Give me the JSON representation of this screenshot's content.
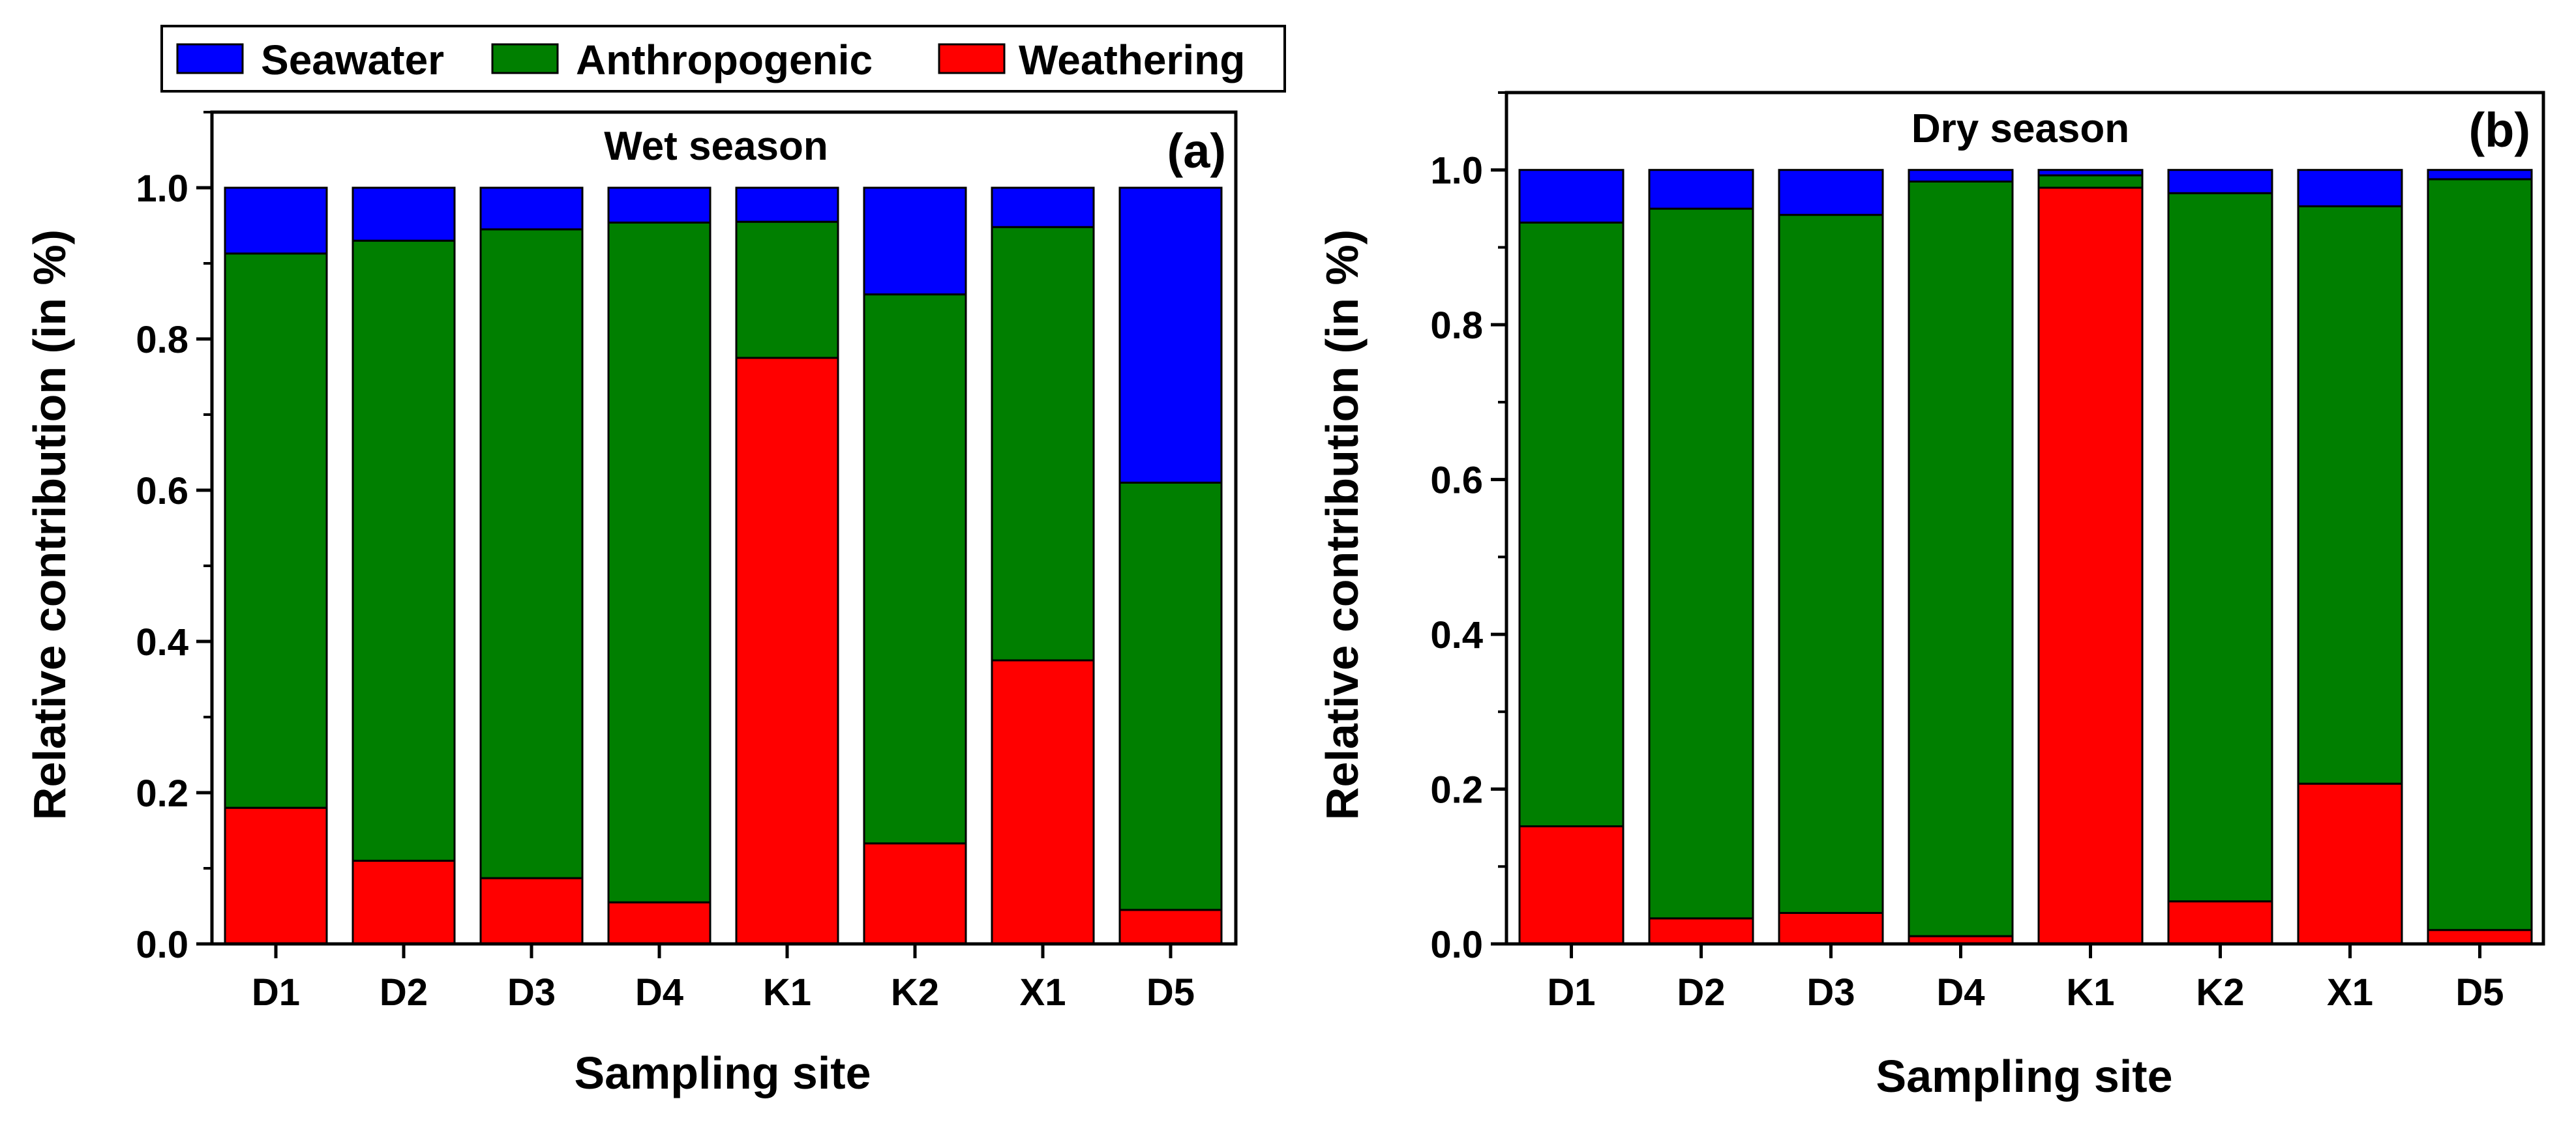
{
  "legend": {
    "items": [
      {
        "label": "Seawater",
        "color": "#0000FF"
      },
      {
        "label": "Anthropogenic",
        "color": "#007F00"
      },
      {
        "label": "Weathering",
        "color": "#FF0000"
      }
    ]
  },
  "chart_data": [
    {
      "type": "bar",
      "stacked": true,
      "title": "Wet season",
      "panel_label": "(a)",
      "xlabel": "Sampling site",
      "ylabel": "Relative contribution (in %)",
      "ylim": [
        0,
        1.1
      ],
      "yticks": [
        "0.0",
        "0.2",
        "0.4",
        "0.6",
        "0.8",
        "1.0"
      ],
      "categories": [
        "D1",
        "D2",
        "D3",
        "D4",
        "K1",
        "K2",
        "X1",
        "D5"
      ],
      "series": [
        {
          "name": "Weathering",
          "color": "#FF0000",
          "values": [
            0.18,
            0.11,
            0.087,
            0.055,
            0.775,
            0.133,
            0.375,
            0.045
          ]
        },
        {
          "name": "Anthropogenic",
          "color": "#007F00",
          "values": [
            0.733,
            0.82,
            0.858,
            0.899,
            0.18,
            0.726,
            0.573,
            0.565
          ]
        },
        {
          "name": "Seawater",
          "color": "#0000FF",
          "values": [
            0.087,
            0.07,
            0.055,
            0.046,
            0.045,
            0.141,
            0.052,
            0.39
          ]
        }
      ]
    },
    {
      "type": "bar",
      "stacked": true,
      "title": "Dry season",
      "panel_label": "(b)",
      "xlabel": "Sampling site",
      "ylabel": "Relative contribution (in %)",
      "ylim": [
        0,
        1.1
      ],
      "yticks": [
        "0.0",
        "0.2",
        "0.4",
        "0.6",
        "0.8",
        "1.0"
      ],
      "categories": [
        "D1",
        "D2",
        "D3",
        "D4",
        "K1",
        "K2",
        "X1",
        "D5"
      ],
      "series": [
        {
          "name": "Weathering",
          "color": "#FF0000",
          "values": [
            0.152,
            0.033,
            0.04,
            0.01,
            0.977,
            0.055,
            0.207,
            0.018
          ]
        },
        {
          "name": "Anthropogenic",
          "color": "#007F00",
          "values": [
            0.78,
            0.917,
            0.902,
            0.975,
            0.016,
            0.915,
            0.746,
            0.97
          ]
        },
        {
          "name": "Seawater",
          "color": "#0000FF",
          "values": [
            0.068,
            0.05,
            0.058,
            0.015,
            0.007,
            0.03,
            0.047,
            0.012
          ]
        }
      ]
    }
  ]
}
